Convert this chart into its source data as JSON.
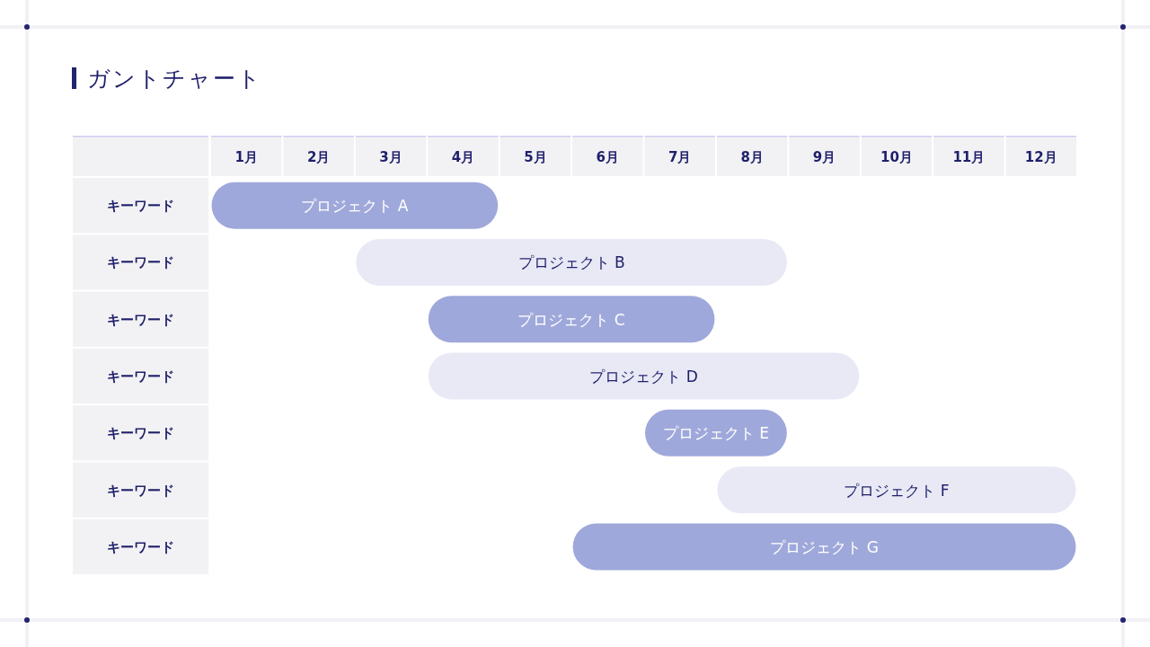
{
  "chart_data": {
    "type": "bar",
    "orientation": "horizontal",
    "title": "ガントチャート",
    "categories": [
      "キーワード",
      "キーワード",
      "キーワード",
      "キーワード",
      "キーワード",
      "キーワード",
      "キーワード"
    ],
    "base": [
      0,
      2,
      3,
      3,
      6,
      7,
      5
    ],
    "values": [
      4,
      6,
      4,
      6,
      2,
      5,
      7
    ],
    "colors": [
      "#9fa8da",
      "#e8e9f5",
      "#9fa8da",
      "#e8e9f5",
      "#9fa8da",
      "#e8e9f5",
      "#9fa8da"
    ],
    "value_labels": [
      "プロジェクト A",
      "プロジェクト B",
      "プロジェクト C",
      "プロジェクト D",
      "プロジェクト E",
      "プロジェクト F",
      "プロジェクト G"
    ],
    "xlim": [
      0,
      12
    ],
    "xticks": [
      {
        "value": 0.5,
        "label": "1月"
      },
      {
        "value": 1.5,
        "label": "2月"
      },
      {
        "value": 2.5,
        "label": "3月"
      },
      {
        "value": 3.5,
        "label": "4月"
      },
      {
        "value": 4.5,
        "label": "5月"
      },
      {
        "value": 5.5,
        "label": "6月"
      },
      {
        "value": 6.5,
        "label": "7月"
      },
      {
        "value": 7.5,
        "label": "8月"
      },
      {
        "value": 8.5,
        "label": "9月"
      },
      {
        "value": 9.5,
        "label": "10月"
      },
      {
        "value": 10.5,
        "label": "11月"
      },
      {
        "value": 11.5,
        "label": "12月"
      }
    ]
  }
}
